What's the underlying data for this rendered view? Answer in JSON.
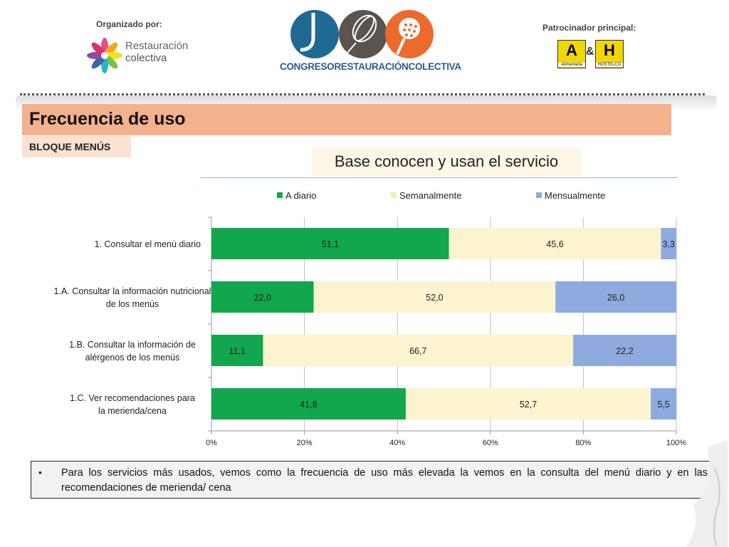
{
  "header": {
    "organized_by_label": "Organizado por:",
    "org_name_line1": "Restauración",
    "org_name_line2": "colectiva",
    "congress_name": "CONGRESORESTAURACIÓNCOLECTIVA",
    "sponsor_label": "Patrocinador principal:",
    "sponsor_a_letter": "A",
    "sponsor_a_caption": "Alimentaria",
    "sponsor_amp": "&",
    "sponsor_h_letter": "H",
    "sponsor_h_caption": "HOSTELCO"
  },
  "slide": {
    "title": "Frecuencia de uso",
    "section": "BLOQUE MENÚS",
    "subtitle": "Base conocen y usan el servicio"
  },
  "note": {
    "bullet": "•",
    "text": "Para los servicios más usados, vemos como la frecuencia de uso más elevada la vemos en la consulta del menú diario y en las recomendaciones de merienda/ cena"
  },
  "colors": {
    "a_diario": "#12a64d",
    "semanalmente": "#fdf3cf",
    "mensualmente": "#8eabdf",
    "title_bar": "#f3b28c"
  },
  "chart_data": {
    "type": "bar",
    "orientation": "horizontal",
    "stacked": true,
    "categories": [
      [
        "1. Consultar el menú diario"
      ],
      [
        "1.A. Consultar la información nutricional",
        "de los menús"
      ],
      [
        "1.B. Consultar la información de",
        "alérgenos de los menús"
      ],
      [
        "1.C. Ver recomendaciones para",
        "la merienda/cena"
      ]
    ],
    "series": [
      {
        "name": "A diario",
        "values": [
          51.1,
          22.0,
          11.1,
          41.8
        ],
        "labels": [
          "51,1",
          "22,0",
          "11,1",
          "41,8"
        ]
      },
      {
        "name": "Semanalmente",
        "values": [
          45.6,
          52.0,
          66.7,
          52.7
        ],
        "labels": [
          "45,6",
          "52,0",
          "66,7",
          "52,7"
        ]
      },
      {
        "name": "Mensualmente",
        "values": [
          3.3,
          26.0,
          22.2,
          5.5
        ],
        "labels": [
          "3,3",
          "26,0",
          "22,2",
          "5,5"
        ]
      }
    ],
    "xlim": [
      0,
      100
    ],
    "xticks": [
      "0%",
      "20%",
      "40%",
      "60%",
      "80%",
      "100%"
    ],
    "grid": true,
    "legend_position": "top"
  }
}
